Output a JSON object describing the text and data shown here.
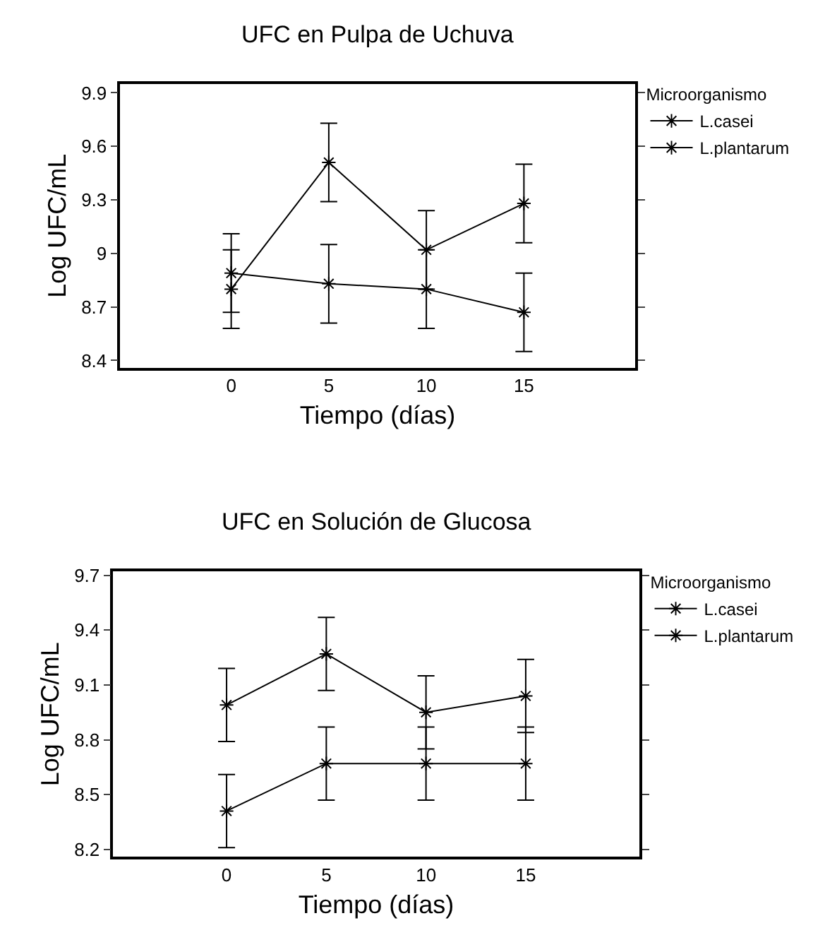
{
  "chart_data": [
    {
      "type": "line",
      "title": "UFC en Pulpa de Uchuva",
      "xlabel": "Tiempo (días)",
      "ylabel": "Log UFC/mL",
      "legend_title": "Microorganismo",
      "x": [
        0,
        5,
        10,
        15
      ],
      "series": [
        {
          "name": "L.casei",
          "color": "#000000",
          "values": [
            8.8,
            9.51,
            9.02,
            9.28
          ],
          "errors": [
            0.22,
            0.22,
            0.22,
            0.22
          ]
        },
        {
          "name": "L.plantarum",
          "color": "#000000",
          "values": [
            8.89,
            8.83,
            8.8,
            8.67
          ],
          "errors": [
            0.22,
            0.22,
            0.22,
            0.22
          ]
        }
      ],
      "xlim": [
        -5.7,
        20.7
      ],
      "xticks": [
        0,
        5,
        10,
        15
      ],
      "ylim": [
        8.36,
        9.95
      ],
      "yticks": [
        8.4,
        8.7,
        9,
        9.3,
        9.6,
        9.9
      ],
      "grid": false,
      "legend": "top right",
      "marker": "cross",
      "line_style": "solid"
    },
    {
      "type": "line",
      "title": "UFC en Solución de Glucosa",
      "xlabel": "Tiempo (días)",
      "ylabel": "Log UFC/mL",
      "legend_title": "Microorganismo",
      "x": [
        0,
        5,
        10,
        15
      ],
      "series": [
        {
          "name": "L.casei",
          "color": "#000000",
          "values": [
            8.99,
            9.27,
            8.95,
            9.04
          ],
          "errors": [
            0.2,
            0.2,
            0.2,
            0.2
          ]
        },
        {
          "name": "L.plantarum",
          "color": "#000000",
          "values": [
            8.41,
            8.67,
            8.67,
            8.67
          ],
          "errors": [
            0.2,
            0.2,
            0.2,
            0.2
          ]
        }
      ],
      "xlim": [
        -5.7,
        20.7
      ],
      "xticks": [
        0,
        5,
        10,
        15
      ],
      "ylim": [
        8.16,
        9.72
      ],
      "yticks": [
        8.2,
        8.5,
        8.8,
        9.1,
        9.4,
        9.7
      ],
      "grid": false,
      "legend": "top right",
      "marker": "cross",
      "line_style": "solid"
    }
  ]
}
